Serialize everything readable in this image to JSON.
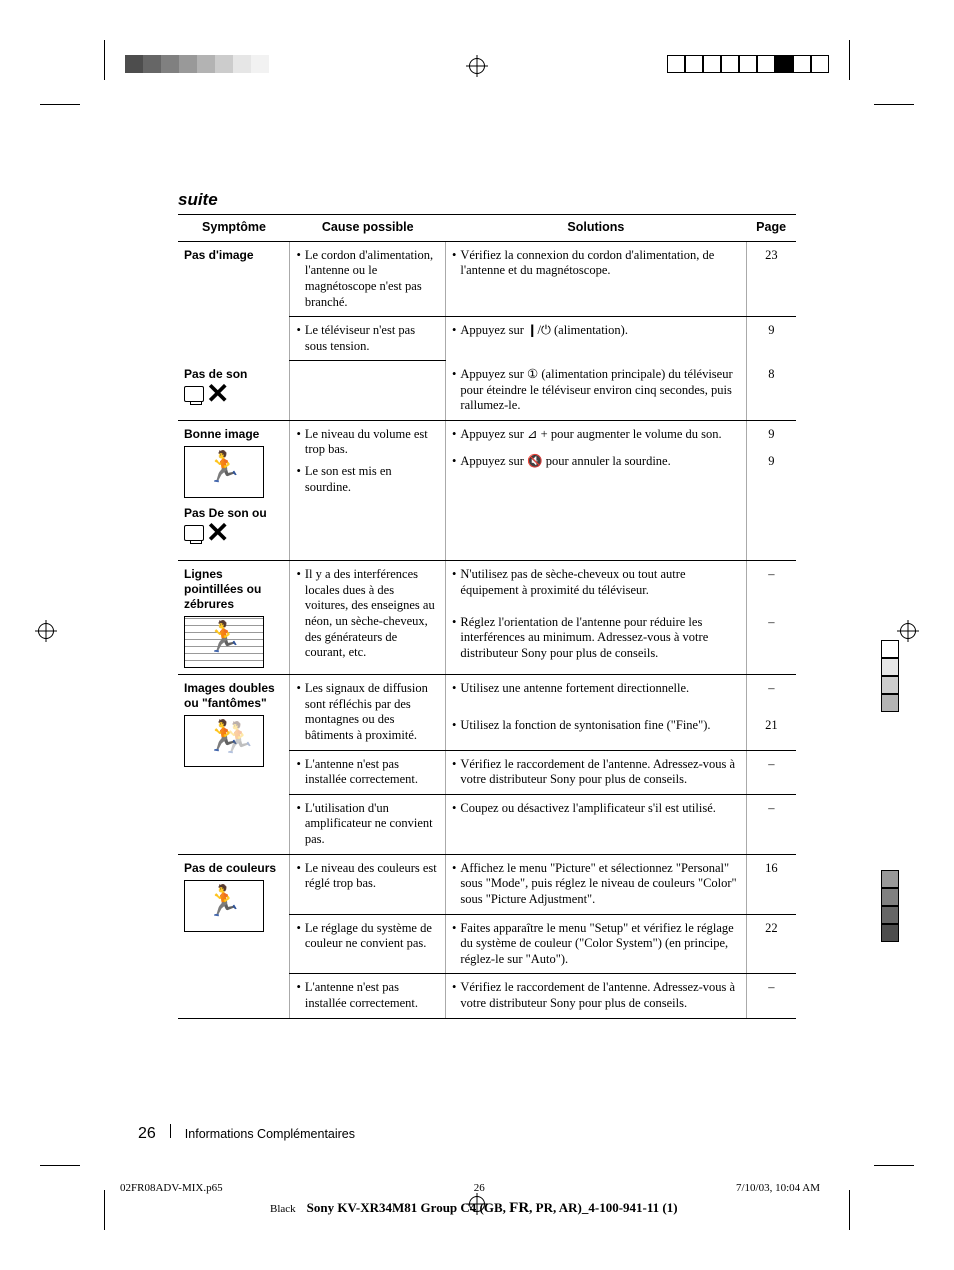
{
  "heading": "suite",
  "columns": {
    "c1": "Symptôme",
    "c2": "Cause possible",
    "c3": "Solutions",
    "c4": "Page"
  },
  "rows": {
    "r1": {
      "sym": "Pas d'image",
      "cause": "Le cordon d'alimentation, l'antenne ou le magnétoscope n'est pas branché.",
      "sol": "Vérifiez la connexion du cordon d'alimentation, de l'antenne et du magnétoscope.",
      "pg": "23"
    },
    "r2": {
      "sym": "Pas de son",
      "cause": "Le téléviseur n'est pas sous tension.",
      "sol_a": "Appuyez sur ❙/⏻ (alimentation).",
      "sol_b": "Appuyez sur ① (alimentation principale) du téléviseur pour éteindre le téléviseur environ cinq secondes, puis rallumez-le.",
      "pg_a": "9",
      "pg_b": "8"
    },
    "r3": {
      "sym_a": "Bonne image",
      "sym_b": "Pas De son ou",
      "cause_a": "Le niveau du volume est trop bas.",
      "cause_b": "Le son est mis en sourdine.",
      "sol_a": "Appuyez sur ⊿ + pour augmenter le volume du son.",
      "sol_b": "Appuyez sur 🔇 pour annuler la sourdine.",
      "pg_a": "9",
      "pg_b": "9"
    },
    "r4": {
      "sym": "Lignes pointillées ou zébrures",
      "cause": "Il y a des interférences locales dues à des voitures, des enseignes au néon, un sèche-cheveux, des générateurs de courant, etc.",
      "sol_a": "N'utilisez pas de sèche-cheveux ou tout autre équipement à proximité du téléviseur.",
      "sol_b": "Réglez l'orientation de l'antenne pour réduire les interférences au minimum. Adressez-vous à votre distributeur Sony pour plus de conseils.",
      "pg_a": "–",
      "pg_b": "–"
    },
    "r5": {
      "sym": "Images doubles ou \"fantômes\"",
      "cause_a": "Les signaux de diffusion sont réfléchis par des montagnes ou des bâtiments à proximité.",
      "cause_b": "L'antenne n'est pas installée correctement.",
      "cause_c": "L'utilisation d'un amplificateur ne convient pas.",
      "sol_a": "Utilisez une antenne fortement directionnelle.",
      "sol_b": "Utilisez la fonction de syntonisation fine (\"Fine\").",
      "sol_c": "Vérifiez le raccordement de l'antenne. Adressez-vous à votre distributeur Sony pour plus de conseils.",
      "sol_d": "Coupez ou désactivez l'amplificateur s'il est utilisé.",
      "pg_a": "–",
      "pg_b": "21",
      "pg_c": "–",
      "pg_d": "–"
    },
    "r6": {
      "sym": "Pas de couleurs",
      "cause_a": "Le niveau des couleurs est réglé trop bas.",
      "cause_b": "Le réglage du système de couleur ne convient pas.",
      "cause_c": "L'antenne n'est pas installée correctement.",
      "sol_a": "Affichez le menu \"Picture\" et sélectionnez \"Personal\" sous \"Mode\", puis réglez le niveau de couleurs \"Color\" sous \"Picture Adjustment\".",
      "sol_b": "Faites apparaître le menu \"Setup\" et vérifiez le réglage du système de couleur (\"Color System\") (en principe, réglez-le sur \"Auto\").",
      "sol_c": "Vérifiez le raccordement de l'antenne. Adressez-vous à votre distributeur Sony pour plus de conseils.",
      "pg_a": "16",
      "pg_b": "22",
      "pg_c": "–"
    }
  },
  "footer": {
    "page_num": "26",
    "section": "Informations Complémentaires"
  },
  "meta": {
    "file": "02FR08ADV-MIX.p65",
    "pn": "26",
    "date": "7/10/03, 10:04 AM",
    "black": "Black",
    "title_a": "Sony KV-XR34M81 Group C4 (GB, ",
    "title_fr": "FR",
    "title_b": ", PR, AR)_4-100-941-11 (1)"
  },
  "colors": {
    "left_bar": [
      "#4d4d4d",
      "#666",
      "#808080",
      "#999",
      "#b3b3b3",
      "#ccc",
      "#e6e6e6",
      "#f2f2f2"
    ],
    "right_bar": [
      "#fff",
      "#fff",
      "#fff",
      "#fff",
      "#fff",
      "#fff",
      "#000",
      "#fff",
      "#fff"
    ],
    "side_top": [
      "#fff",
      "#e6e6e6",
      "#ccc",
      "#b3b3b3"
    ],
    "side_bot": [
      "#999",
      "#808080",
      "#666",
      "#4d4d4d"
    ]
  }
}
